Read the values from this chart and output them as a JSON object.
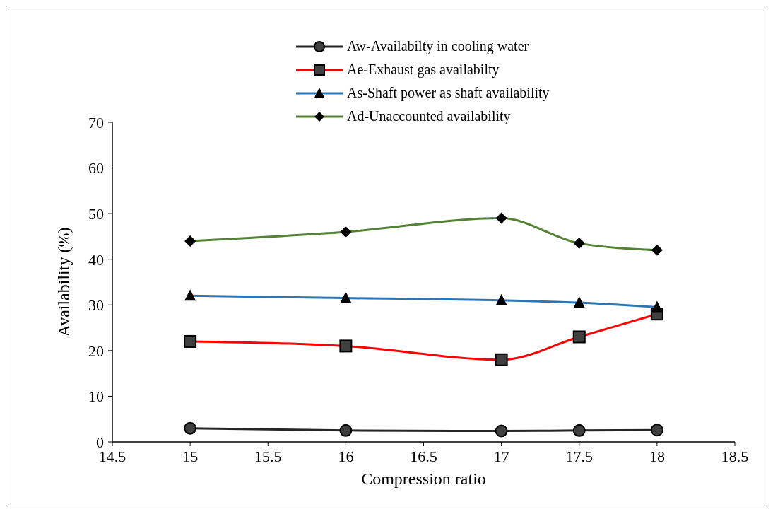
{
  "chart_data": {
    "type": "line",
    "xlabel": "Compression ratio",
    "ylabel": "Availability (%)",
    "x": [
      15,
      16,
      17,
      17.5,
      18
    ],
    "xlim": [
      14.5,
      18.5
    ],
    "xticks": [
      14.5,
      15,
      15.5,
      16,
      16.5,
      17,
      17.5,
      18,
      18.5
    ],
    "ylim": [
      0,
      70
    ],
    "yticks": [
      0,
      10,
      20,
      30,
      40,
      50,
      60,
      70
    ],
    "grid": false,
    "legend": "top",
    "line_style": "solid",
    "series": [
      {
        "name": "Aw-Availabilty in cooling water",
        "color": "#262626",
        "marker": "circle",
        "values": [
          3,
          2.5,
          2.4,
          2.5,
          2.6
        ]
      },
      {
        "name": "Ae-Exhaust gas availabilty",
        "color": "#ff0000",
        "marker": "square",
        "values": [
          22,
          21,
          18,
          23,
          28
        ]
      },
      {
        "name": "As-Shaft power as shaft availability",
        "color": "#2e75b6",
        "marker": "triangle",
        "values": [
          32,
          31.5,
          31,
          30.5,
          29.5
        ]
      },
      {
        "name": "Ad-Unaccounted availability",
        "color": "#548235",
        "marker": "diamond",
        "values": [
          44,
          46,
          49,
          43.5,
          42
        ]
      }
    ]
  }
}
